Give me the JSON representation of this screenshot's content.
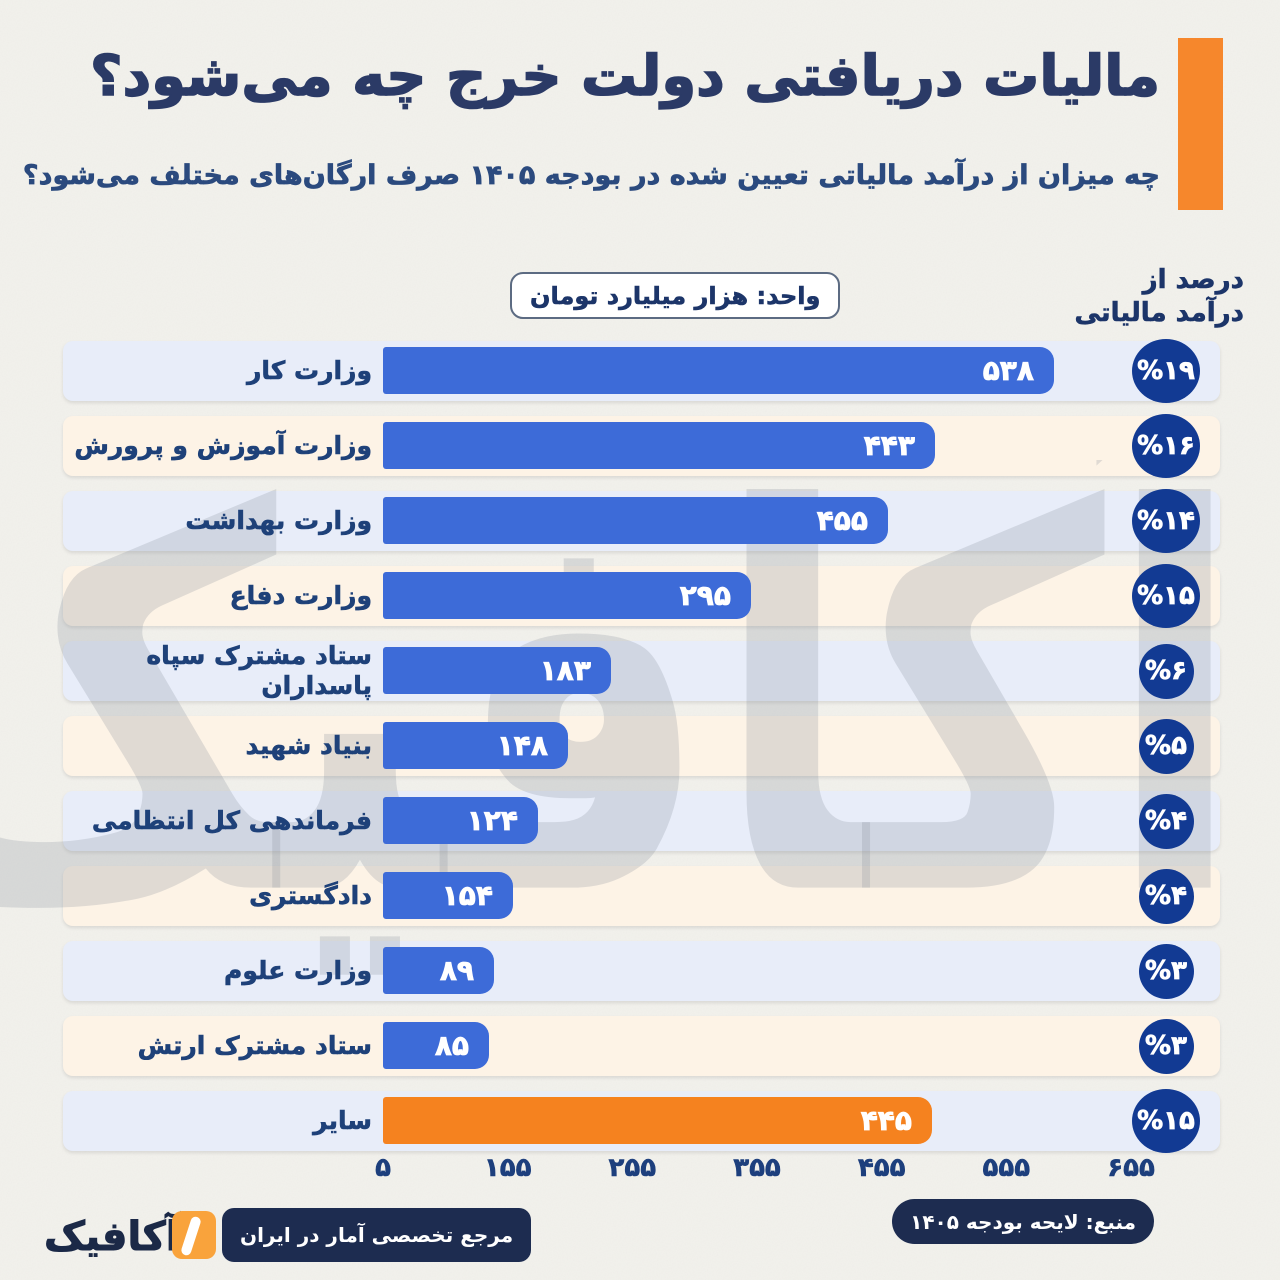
{
  "header": {
    "title": "مالیات دریافتی دولت خرج چه می‌شود؟",
    "subtitle": "چه میزان از درآمد مالیاتی تعیین شده در بودجه ۱۴۰۵ صرف ارگان‌های مختلف می‌شود؟",
    "accent_color": "#f6872c"
  },
  "unit_badge": "واحد: هزار میلیارد تومان",
  "percent_header": {
    "line1": "درصد از",
    "line2": "درآمد مالیاتی"
  },
  "chart_data": {
    "type": "bar",
    "orientation": "horizontal",
    "title": "مالیات دریافتی دولت خرج چه می‌شود؟",
    "unit": "هزار میلیارد تومان",
    "xlim": [
      0,
      600
    ],
    "x_ticks": [
      0,
      100,
      200,
      300,
      400,
      500,
      600
    ],
    "x_tick_labels": [
      "۰",
      "۱۰۰",
      "۲۰۰",
      "۳۰۰",
      "۴۰۰",
      "۵۰۰",
      "۶۰۰"
    ],
    "rows": [
      {
        "label": "وزارت کار",
        "value": 538,
        "value_label": "۵۳۸",
        "percent": 19,
        "percent_label": "%۱۹",
        "color": "#3d6bd8"
      },
      {
        "label": "وزارت آموزش و پرورش",
        "value": 443,
        "value_label": "۴۴۳",
        "percent": 16,
        "percent_label": "%۱۶",
        "color": "#3d6bd8"
      },
      {
        "label": "وزارت بهداشت",
        "value": 405,
        "value_label": "۴۰۵",
        "percent": 14,
        "percent_label": "%۱۴",
        "color": "#3d6bd8"
      },
      {
        "label": "وزارت دفاع",
        "value": 295,
        "value_label": "۲۹۵",
        "percent": 10,
        "percent_label": "%۱۰",
        "color": "#3d6bd8"
      },
      {
        "label": "ستاد مشترک سپاه پاسداران",
        "value": 183,
        "value_label": "۱۸۳",
        "percent": 6,
        "percent_label": "%۶",
        "color": "#3d6bd8"
      },
      {
        "label": "بنیاد شهید",
        "value": 148,
        "value_label": "۱۴۸",
        "percent": 5,
        "percent_label": "%۵",
        "color": "#3d6bd8"
      },
      {
        "label": "فرماندهی کل انتظامی",
        "value": 124,
        "value_label": "۱۲۴",
        "percent": 4,
        "percent_label": "%۴",
        "color": "#3d6bd8"
      },
      {
        "label": "دادگستری",
        "value": 104,
        "value_label": "۱۰۴",
        "percent": 4,
        "percent_label": "%۴",
        "color": "#3d6bd8"
      },
      {
        "label": "وزارت علوم",
        "value": 89,
        "value_label": "۸۹",
        "percent": 3,
        "percent_label": "%۳",
        "color": "#3d6bd8"
      },
      {
        "label": "ستاد مشترک ارتش",
        "value": 85,
        "value_label": "۸۵",
        "percent": 3,
        "percent_label": "%۳",
        "color": "#3d6bd8"
      },
      {
        "label": "سایر",
        "value": 440,
        "value_label": "۴۴۰",
        "percent": 15,
        "percent_label": "%۱۵",
        "color": "#f5821f"
      }
    ],
    "colors": {
      "bar_blue": "#3d6bd8",
      "bar_orange": "#f5821f",
      "row_bg_blue": "#e8edf9",
      "row_bg_cream": "#fdf3e6",
      "badge_navy": "#123a93"
    },
    "legend": null,
    "grid": false
  },
  "watermark": {
    "text": "آکافیک"
  },
  "footer": {
    "logo_text": "آکافیک",
    "tagline": "مرجع تخصصی آمار در ایران",
    "source": "منبع: لایحه بودجه ۱۴۰۵"
  }
}
